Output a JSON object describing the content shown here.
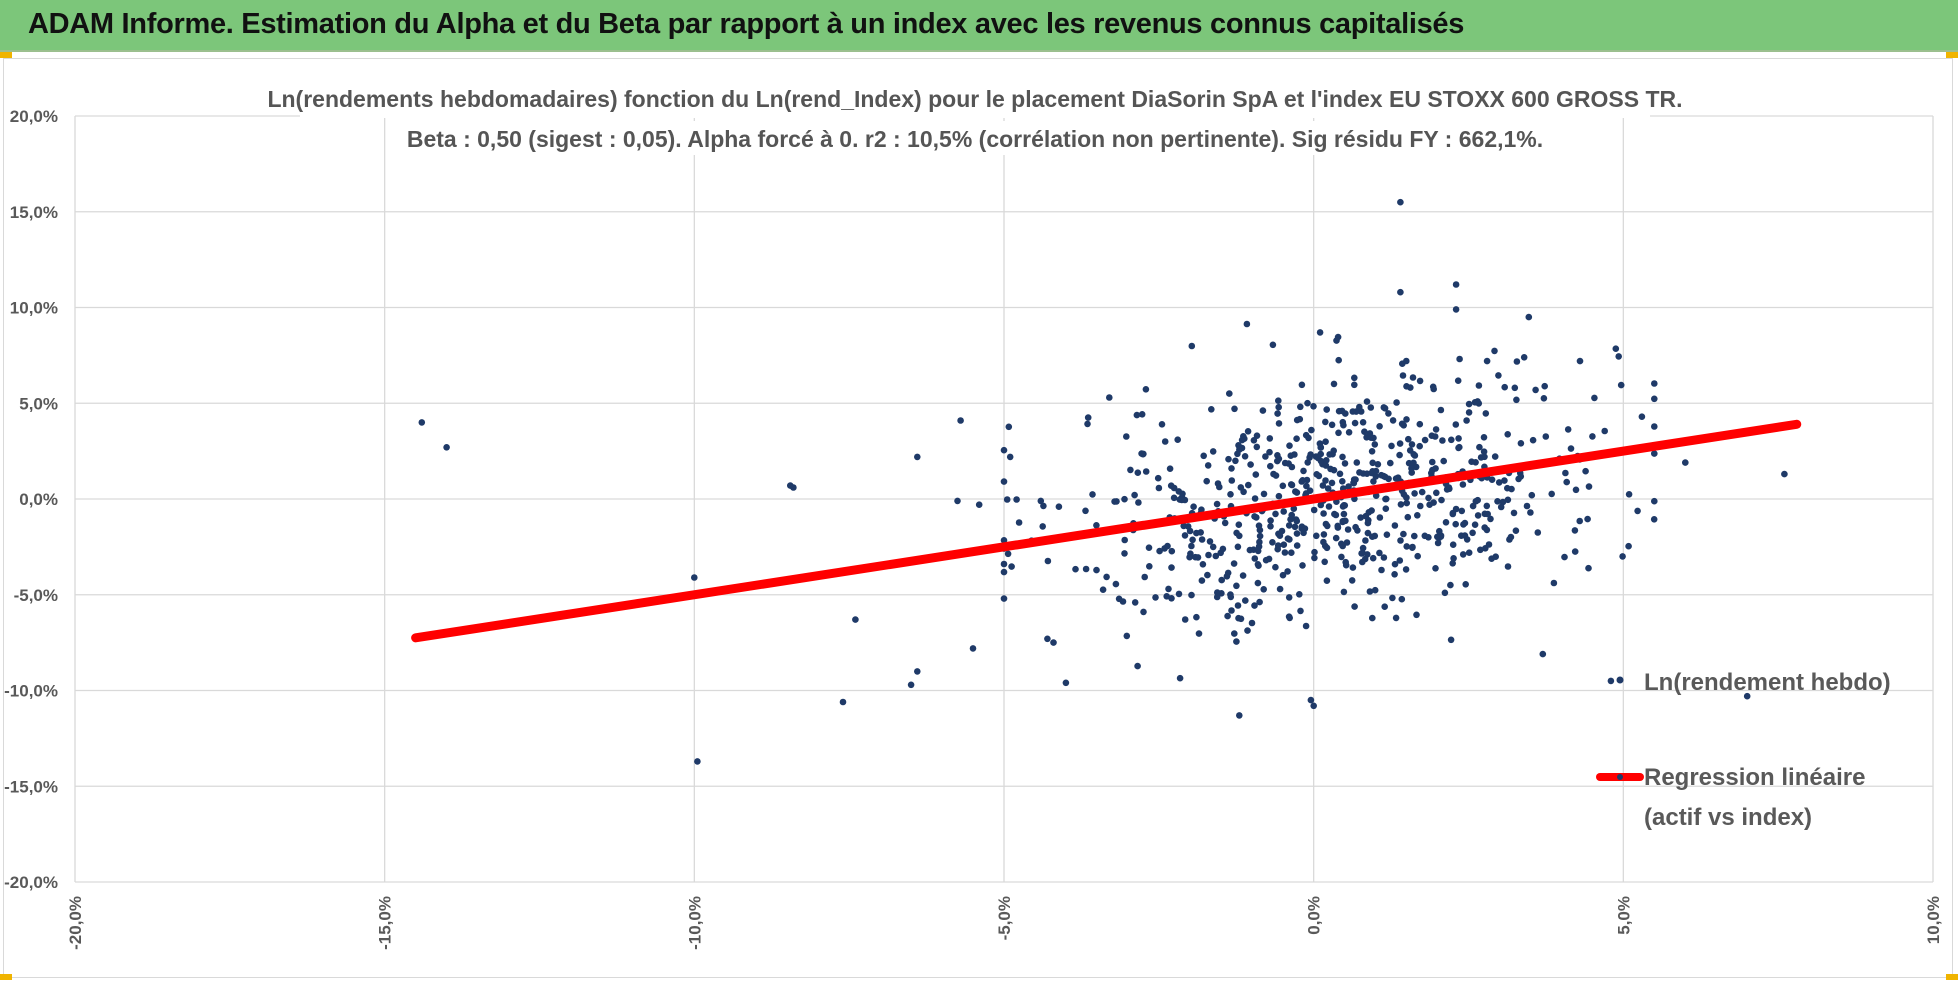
{
  "header": {
    "title": "ADAM Informe. Estimation du Alpha et du Beta par rapport à un index avec les revenus connus capitalisés"
  },
  "colors": {
    "banner": "#7cc67a",
    "points": "#1f3a68",
    "regression": "#ff0000",
    "grid": "#d9d9d9",
    "text": "#595959",
    "corner": "#f0b400"
  },
  "chart_data": {
    "type": "scatter",
    "title_line1": "Ln(rendements hebdomadaires) fonction du Ln(rend_Index) pour le placement DiaSorin SpA et l'index EU STOXX 600 GROSS TR.",
    "title_line2": "Beta : 0,50 (sigest : 0,05).  Alpha forcé à 0. r2 : 10,5% (corrélation non pertinente). Sig résidu FY : 662,1%.",
    "xlabel": "",
    "ylabel": "",
    "xlim": [
      -0.2,
      0.1
    ],
    "ylim": [
      -0.2,
      0.2
    ],
    "x_ticks": [
      "-20,0%",
      "-15,0%",
      "-10,0%",
      "-5,0%",
      "0,0%",
      "5,0%",
      "10,0%"
    ],
    "y_ticks": [
      "20,0%",
      "15,0%",
      "10,0%",
      "5,0%",
      "0,0%",
      "-5,0%",
      "-10,0%",
      "-15,0%",
      "-20,0%"
    ],
    "grid": true,
    "legend_position": "right",
    "series": [
      {
        "name": "Ln(rendement hebdo)",
        "kind": "scatter",
        "outliers": [
          [
            -0.144,
            0.04
          ],
          [
            -0.14,
            0.027
          ],
          [
            -0.084,
            0.006
          ],
          [
            -0.0845,
            0.007
          ],
          [
            -0.1,
            -0.041
          ],
          [
            -0.0995,
            -0.137
          ],
          [
            -0.076,
            -0.106
          ],
          [
            -0.074,
            -0.063
          ],
          [
            -0.065,
            -0.097
          ],
          [
            -0.064,
            -0.09
          ],
          [
            -0.064,
            0.022
          ],
          [
            -0.057,
            0.041
          ],
          [
            -0.0575,
            -0.001
          ],
          [
            -0.055,
            -0.078
          ],
          [
            -0.054,
            -0.003
          ],
          [
            -0.049,
            0.022
          ],
          [
            -0.043,
            -0.073
          ],
          [
            -0.042,
            -0.075
          ],
          [
            -0.04,
            -0.096
          ],
          [
            -0.033,
            0.053
          ],
          [
            -0.012,
            -0.113
          ],
          [
            0.0,
            -0.108
          ],
          [
            0.014,
            0.155
          ],
          [
            0.014,
            0.108
          ],
          [
            0.023,
            0.112
          ],
          [
            0.023,
            0.099
          ],
          [
            0.028,
            0.072
          ],
          [
            0.034,
            0.074
          ],
          [
            0.037,
            -0.081
          ],
          [
            0.043,
            0.072
          ],
          [
            0.048,
            -0.095
          ],
          [
            0.053,
            0.043
          ],
          [
            0.06,
            0.019
          ],
          [
            0.07,
            -0.103
          ],
          [
            0.076,
            0.013
          ]
        ],
        "cloud": {
          "count": 700,
          "x_center": 0.004,
          "x_spread": 0.022,
          "noise_spread": 0.032,
          "x_range": [
            -0.05,
            0.055
          ]
        }
      },
      {
        "name": "Regression linéaire\n(actif vs index)",
        "label_line1": "Regression linéaire",
        "label_line2": "(actif vs index)",
        "kind": "line",
        "slope": 0.5,
        "intercept": 0,
        "x_range": [
          -0.145,
          0.078
        ]
      }
    ]
  }
}
